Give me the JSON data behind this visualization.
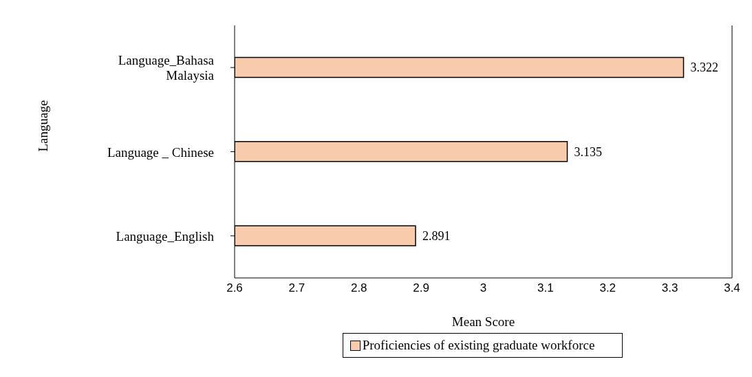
{
  "chart_data": {
    "type": "bar",
    "orientation": "horizontal",
    "xlabel": "Mean Score",
    "ylabel": "Language",
    "categories": [
      "Language_Bahasa Malaysia",
      "Language _ Chinese",
      "Language_English"
    ],
    "series": [
      {
        "name": "Proficiencies of existing graduate workforce",
        "color": "#f8cbad",
        "values": [
          3.322,
          3.135,
          2.891
        ]
      }
    ],
    "xlim": [
      2.6,
      3.4
    ],
    "xticks": [
      2.6,
      2.7,
      2.8,
      2.9,
      3,
      3.1,
      3.2,
      3.3,
      3.4
    ],
    "grid": false,
    "legend": "bottom",
    "data_labels": true
  }
}
